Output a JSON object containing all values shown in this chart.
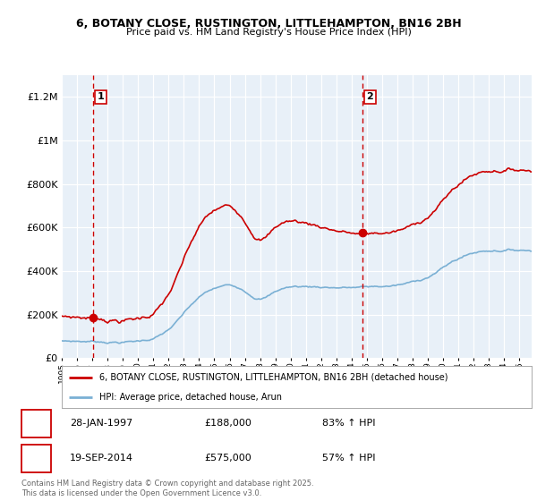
{
  "title_line1": "6, BOTANY CLOSE, RUSTINGTON, LITTLEHAMPTON, BN16 2BH",
  "title_line2": "Price paid vs. HM Land Registry's House Price Index (HPI)",
  "sale1_date": "28-JAN-1997",
  "sale1_price": 188000,
  "sale1_hpi_pct": "83% ↑ HPI",
  "sale2_date": "19-SEP-2014",
  "sale2_price": 575000,
  "sale2_hpi_pct": "57% ↑ HPI",
  "legend_line1": "6, BOTANY CLOSE, RUSTINGTON, LITTLEHAMPTON, BN16 2BH (detached house)",
  "legend_line2": "HPI: Average price, detached house, Arun",
  "footer": "Contains HM Land Registry data © Crown copyright and database right 2025.\nThis data is licensed under the Open Government Licence v3.0.",
  "red_color": "#cc0000",
  "blue_color": "#7ab0d4",
  "plot_bg": "#e8f0f8",
  "ylim_max": 1300000,
  "sale1_year": 1997.08,
  "sale2_year": 2014.72,
  "yticks": [
    0,
    200000,
    400000,
    600000,
    800000,
    1000000,
    1200000
  ],
  "ytick_labels": [
    "£0",
    "£200K",
    "£400K",
    "£600K",
    "£800K",
    "£1M",
    "£1.2M"
  ]
}
